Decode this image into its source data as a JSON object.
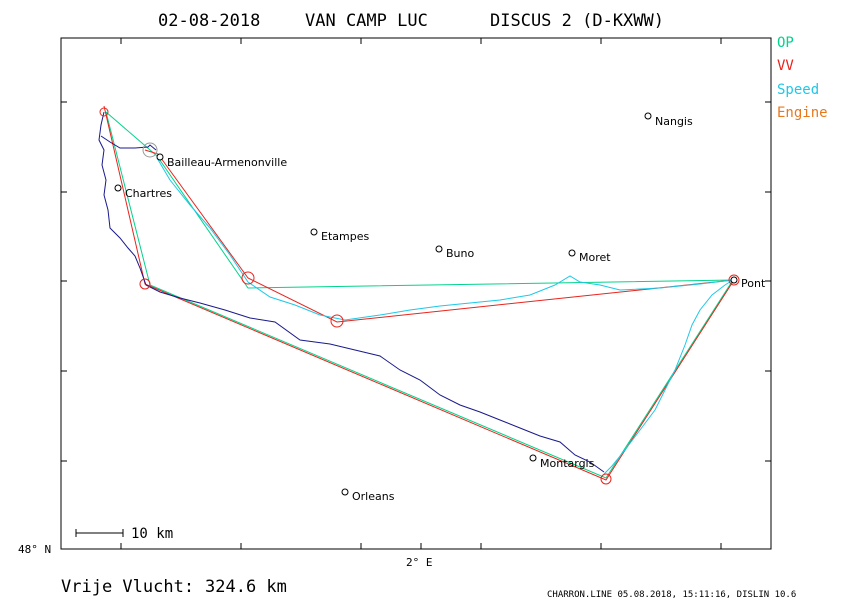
{
  "title": {
    "date": "02-08-2018",
    "pilot": "VAN CAMP LUC",
    "glider": "DISCUS 2 (D-KXWW)"
  },
  "legend": [
    {
      "label": "OP",
      "color": "#00d48a"
    },
    {
      "label": "VV",
      "color": "#e8241c"
    },
    {
      "label": "Speed",
      "color": "#1ec8e8"
    },
    {
      "label": "Engine",
      "color": "#e8781c"
    }
  ],
  "towns": [
    {
      "name": "Nangis"
    },
    {
      "name": "Bailleau-Armenonville"
    },
    {
      "name": "Chartres"
    },
    {
      "name": "Etampes"
    },
    {
      "name": "Buno"
    },
    {
      "name": "Moret"
    },
    {
      "name": "Pont"
    },
    {
      "name": "Montargis"
    },
    {
      "name": "Orleans"
    }
  ],
  "axes": {
    "latitude_label": "48° N",
    "longitude_label": "2° E"
  },
  "scale_bar": {
    "label": "10 km"
  },
  "distance": {
    "label": "Vrije Vlucht:",
    "value": "324.6 km"
  },
  "footer": "CHARRON.LINE 05.08.2018, 15:11:16, DISLIN 10.6",
  "colors": {
    "track_dark": "#1a1a8c",
    "track_speed": "#1ec8e8",
    "op_line": "#00d48a",
    "vv_line": "#e8241c",
    "frame": "#000000"
  }
}
